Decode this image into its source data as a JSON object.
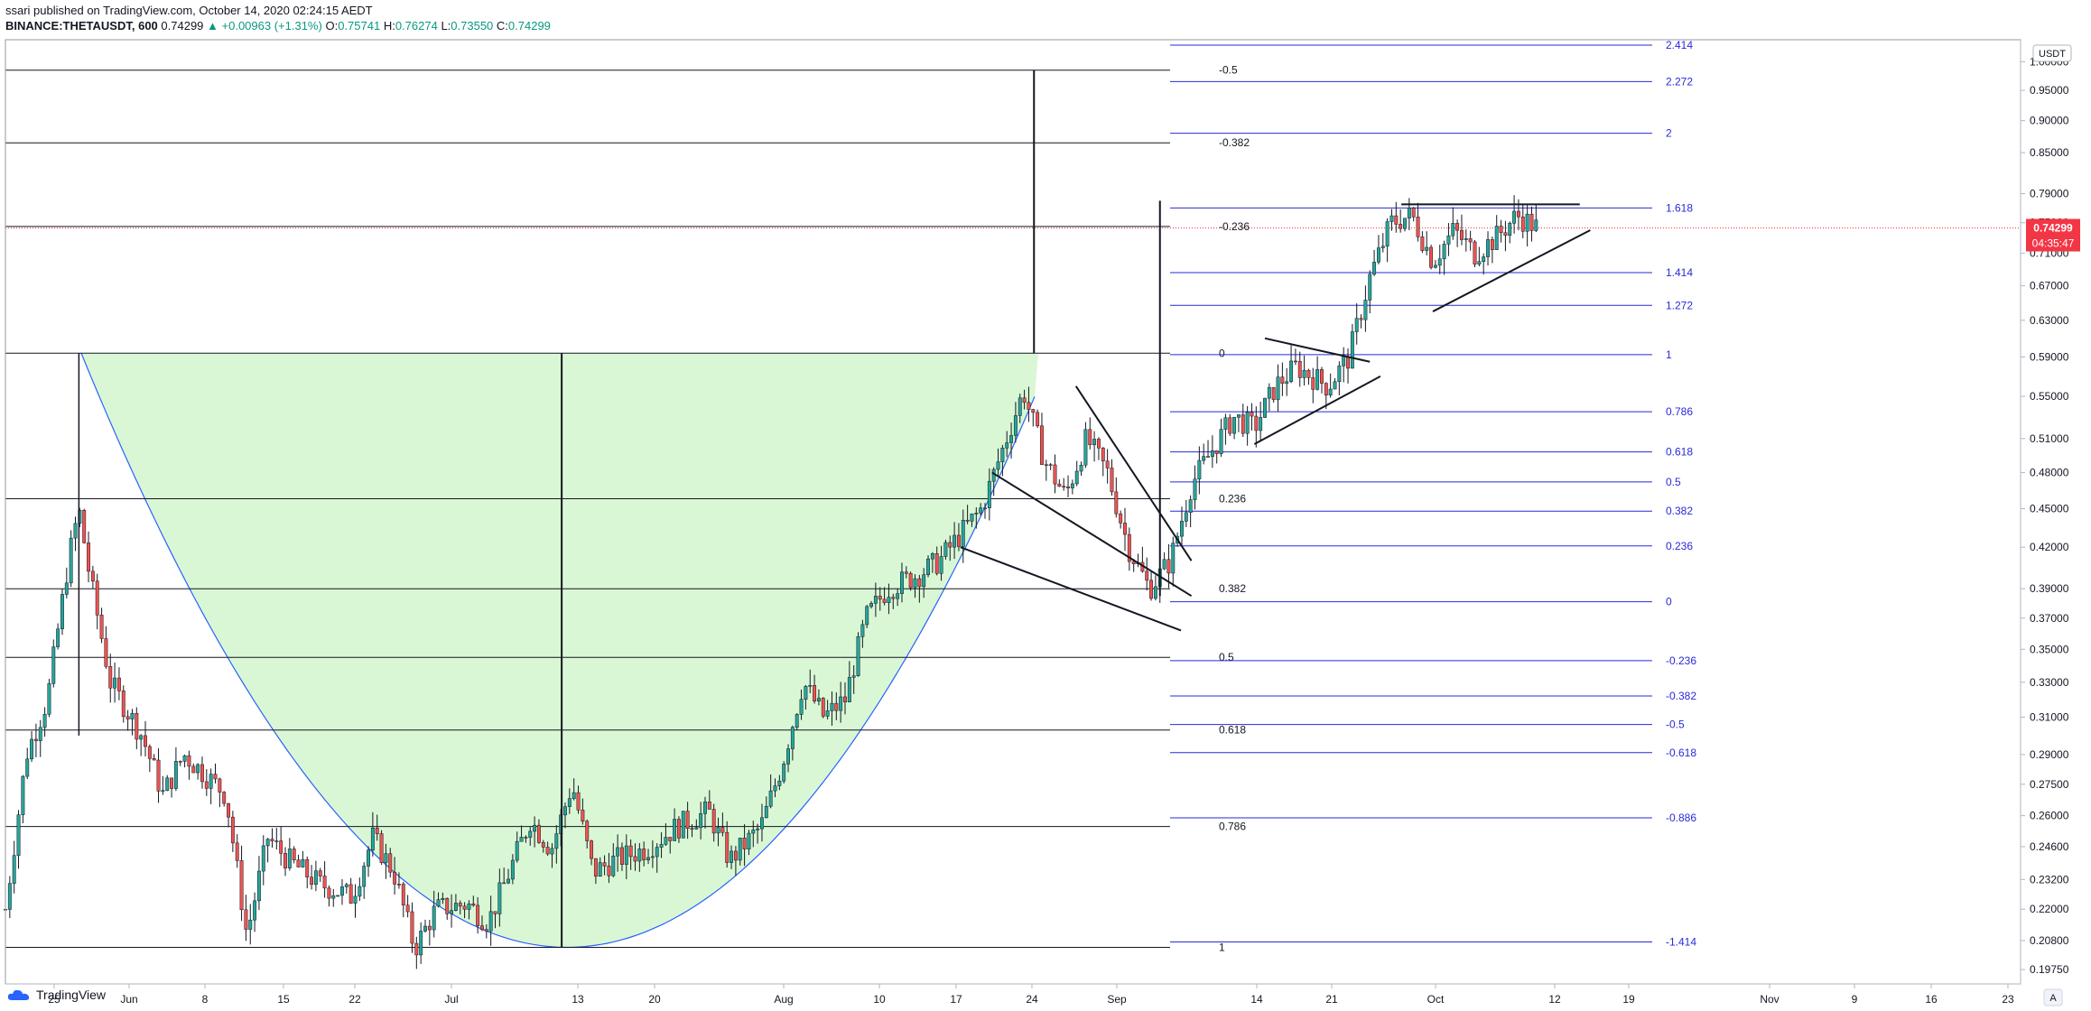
{
  "header": {
    "published_line": "ssari published on TradingView.com, October 14, 2020 02:24:15 AEDT",
    "symbol": "BINANCE:THETAUSDT, 600",
    "last": "0.74299",
    "change": "▲ +0.00963 (+1.31%)",
    "o_label": "O:",
    "o": "0.75741",
    "h_label": "H:",
    "h": "0.76274",
    "l_label": "L:",
    "l": "0.73550",
    "c_label": "C:",
    "c": "0.74299"
  },
  "price_axis": {
    "currency": "USDT",
    "ticks": [
      "0.19750",
      "0.20800",
      "0.22000",
      "0.23200",
      "0.24600",
      "0.26000",
      "0.27500",
      "0.29000",
      "0.31000",
      "0.33000",
      "0.35000",
      "0.37000",
      "0.39000",
      "0.42000",
      "0.45000",
      "0.48000",
      "0.51000",
      "0.55000",
      "0.59000",
      "0.63000",
      "0.67000",
      "0.71000",
      "0.75000",
      "0.79000",
      "0.85000",
      "0.90000",
      "0.95000",
      "1.00000"
    ],
    "last_price": "0.74299",
    "countdown": "04:35:47"
  },
  "time_axis": {
    "ticks": [
      "25",
      "Jun",
      "8",
      "15",
      "22",
      "Jul",
      "13",
      "20",
      "Aug",
      "10",
      "17",
      "24",
      "Sep",
      "14",
      "21",
      "Oct",
      "12",
      "19",
      "Nov",
      "9",
      "16",
      "23"
    ],
    "corner": "A"
  },
  "fib_left": {
    "labels": [
      "-0.5",
      "-0.382",
      "-0.236",
      "0",
      "0.236",
      "0.382",
      "0.5",
      "0.618",
      "0.786",
      "1"
    ]
  },
  "fib_right": {
    "labels": [
      "2.414",
      "2.272",
      "2",
      "1.618",
      "1.414",
      "1.272",
      "1",
      "0.786",
      "0.618",
      "0.5",
      "0.382",
      "0.236",
      "0",
      "-0.236",
      "-0.382",
      "-0.5",
      "-0.618",
      "-0.886",
      "-1.414"
    ]
  },
  "colors": {
    "up": "#26a69a",
    "down": "#ef5350",
    "cup_fill": "#d9f7d4",
    "cup_stroke": "#2962ff",
    "fib_blue": "#2929d9",
    "price_tag": "#f23645"
  },
  "chart_data": {
    "type": "candlestick",
    "symbol": "BINANCE:THETAUSDT",
    "interval": "600",
    "y_scale": "log",
    "ylim": [
      0.1925,
      1.04
    ],
    "x_range": [
      "2020-05-20",
      "2020-11-28"
    ],
    "last_close": 0.74299,
    "ohlc_last": {
      "open": 0.75741,
      "high": 0.76274,
      "low": 0.7355,
      "close": 0.74299,
      "change": 0.00963,
      "change_pct": 1.31
    },
    "close_path": [
      [
        "2020-05-20",
        0.22
      ],
      [
        "2020-05-22",
        0.29
      ],
      [
        "2020-05-24",
        0.32
      ],
      [
        "2020-05-26",
        0.41
      ],
      [
        "2020-05-27",
        0.45
      ],
      [
        "2020-05-28",
        0.4
      ],
      [
        "2020-05-30",
        0.33
      ],
      [
        "2020-06-02",
        0.3
      ],
      [
        "2020-06-04",
        0.27
      ],
      [
        "2020-06-06",
        0.29
      ],
      [
        "2020-06-08",
        0.28
      ],
      [
        "2020-06-10",
        0.27
      ],
      [
        "2020-06-12",
        0.21
      ],
      [
        "2020-06-14",
        0.25
      ],
      [
        "2020-06-16",
        0.24
      ],
      [
        "2020-06-19",
        0.23
      ],
      [
        "2020-06-22",
        0.225
      ],
      [
        "2020-06-24",
        0.25
      ],
      [
        "2020-06-26",
        0.235
      ],
      [
        "2020-06-28",
        0.205
      ],
      [
        "2020-06-30",
        0.22
      ],
      [
        "2020-07-03",
        0.222
      ],
      [
        "2020-07-05",
        0.215
      ],
      [
        "2020-07-07",
        0.235
      ],
      [
        "2020-07-09",
        0.258
      ],
      [
        "2020-07-11",
        0.245
      ],
      [
        "2020-07-13",
        0.275
      ],
      [
        "2020-07-15",
        0.235
      ],
      [
        "2020-07-17",
        0.24
      ],
      [
        "2020-07-20",
        0.245
      ],
      [
        "2020-07-23",
        0.255
      ],
      [
        "2020-07-26",
        0.262
      ],
      [
        "2020-07-28",
        0.24
      ],
      [
        "2020-07-31",
        0.255
      ],
      [
        "2020-08-02",
        0.285
      ],
      [
        "2020-08-04",
        0.33
      ],
      [
        "2020-08-06",
        0.31
      ],
      [
        "2020-08-08",
        0.32
      ],
      [
        "2020-08-10",
        0.37
      ],
      [
        "2020-08-12",
        0.39
      ],
      [
        "2020-08-15",
        0.4
      ],
      [
        "2020-08-17",
        0.41
      ],
      [
        "2020-08-19",
        0.43
      ],
      [
        "2020-08-21",
        0.45
      ],
      [
        "2020-08-23",
        0.5
      ],
      [
        "2020-08-25",
        0.555
      ],
      [
        "2020-08-27",
        0.49
      ],
      [
        "2020-08-29",
        0.46
      ],
      [
        "2020-08-31",
        0.51
      ],
      [
        "2020-09-02",
        0.48
      ],
      [
        "2020-09-04",
        0.42
      ],
      [
        "2020-09-06",
        0.39
      ],
      [
        "2020-09-08",
        0.41
      ],
      [
        "2020-09-10",
        0.47
      ],
      [
        "2020-09-12",
        0.5
      ],
      [
        "2020-09-14",
        0.53
      ],
      [
        "2020-09-16",
        0.52
      ],
      [
        "2020-09-18",
        0.56
      ],
      [
        "2020-09-20",
        0.58
      ],
      [
        "2020-09-23",
        0.56
      ],
      [
        "2020-09-25",
        0.59
      ],
      [
        "2020-09-27",
        0.68
      ],
      [
        "2020-09-29",
        0.75
      ],
      [
        "2020-10-01",
        0.76
      ],
      [
        "2020-10-03",
        0.7
      ],
      [
        "2020-10-05",
        0.74
      ],
      [
        "2020-10-07",
        0.71
      ],
      [
        "2020-10-09",
        0.73
      ],
      [
        "2020-10-11",
        0.76
      ],
      [
        "2020-10-13",
        0.74299
      ]
    ],
    "fib_left_levels": [
      {
        "label": "-0.5",
        "price": 0.985
      },
      {
        "label": "-0.382",
        "price": 0.865
      },
      {
        "label": "-0.236",
        "price": 0.745
      },
      {
        "label": "0",
        "price": 0.594
      },
      {
        "label": "0.236",
        "price": 0.458
      },
      {
        "label": "0.382",
        "price": 0.39
      },
      {
        "label": "0.5",
        "price": 0.345
      },
      {
        "label": "0.618",
        "price": 0.303
      },
      {
        "label": "0.786",
        "price": 0.255
      },
      {
        "label": "1",
        "price": 0.2055
      }
    ],
    "fib_right_levels": [
      {
        "label": "2.414",
        "price": 1.03
      },
      {
        "label": "2.272",
        "price": 0.965
      },
      {
        "label": "2",
        "price": 0.88
      },
      {
        "label": "1.618",
        "price": 0.77
      },
      {
        "label": "1.414",
        "price": 0.686
      },
      {
        "label": "1.272",
        "price": 0.647
      },
      {
        "label": "1",
        "price": 0.5925
      },
      {
        "label": "0.786",
        "price": 0.535
      },
      {
        "label": "0.618",
        "price": 0.498
      },
      {
        "label": "0.5",
        "price": 0.472
      },
      {
        "label": "0.382",
        "price": 0.448
      },
      {
        "label": "0.236",
        "price": 0.421
      },
      {
        "label": "0",
        "price": 0.381
      },
      {
        "label": "-0.236",
        "price": 0.343
      },
      {
        "label": "-0.382",
        "price": 0.322
      },
      {
        "label": "-0.5",
        "price": 0.306
      },
      {
        "label": "-0.618",
        "price": 0.291
      },
      {
        "label": "-0.886",
        "price": 0.259
      },
      {
        "label": "-1.414",
        "price": 0.2075
      }
    ]
  }
}
